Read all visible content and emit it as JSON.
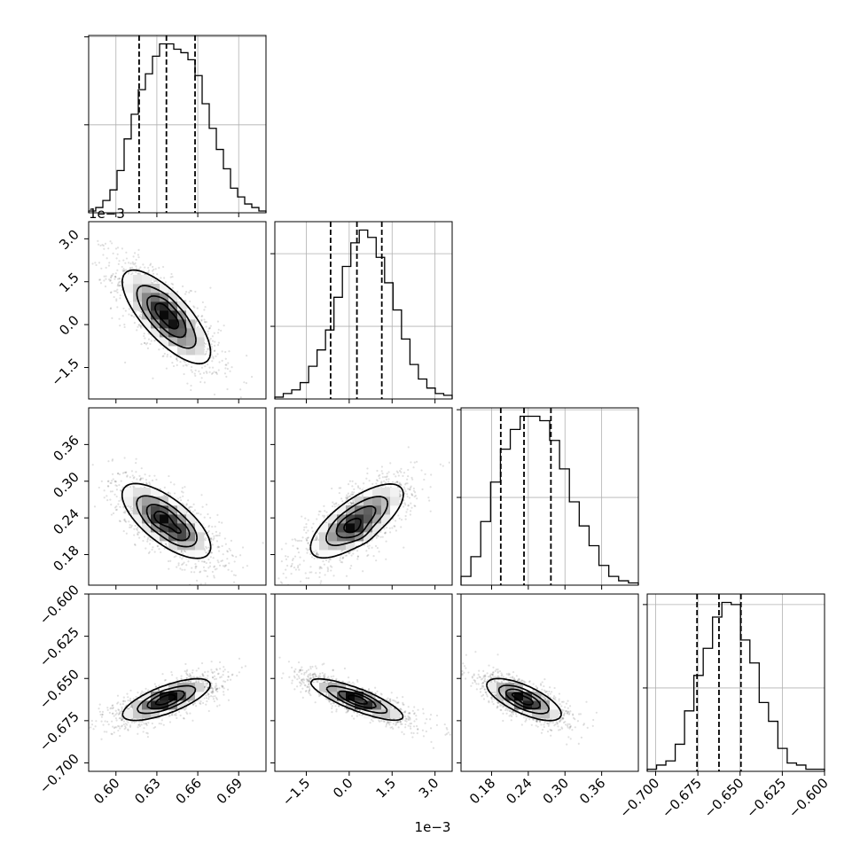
{
  "chart_data": {
    "type": "corner",
    "parameters": [
      {
        "range": [
          0.58,
          0.71
        ],
        "ticks": [
          0.6,
          0.63,
          0.66,
          0.69
        ],
        "tick_labels": [
          "0.60",
          "0.63",
          "0.66",
          "0.69"
        ],
        "offset_label": "",
        "quantiles": [
          0.617,
          0.637,
          0.658
        ],
        "hist": [
          1,
          3,
          7,
          13,
          24,
          42,
          56,
          70,
          79,
          89,
          96,
          96,
          93,
          91,
          87,
          78,
          62,
          48,
          36,
          25,
          14,
          9,
          5,
          3,
          1
        ],
        "hist_yticks": [
          50,
          100
        ]
      },
      {
        "range": [
          -2.6,
          3.6
        ],
        "ticks": [
          -1.5,
          0.0,
          1.5,
          3.0
        ],
        "tick_labels": [
          "−1.5",
          "0.0",
          "1.5",
          "3.0"
        ],
        "offset_label": "1e−3",
        "quantiles": [
          -0.65,
          0.27,
          1.14
        ],
        "hist": [
          1,
          3,
          5,
          9,
          18,
          27,
          38,
          56,
          73,
          86,
          93,
          89,
          78,
          64,
          49,
          33,
          19,
          11,
          6,
          3,
          2
        ],
        "hist_yticks": [
          40,
          80
        ]
      },
      {
        "range": [
          0.13,
          0.42
        ],
        "ticks": [
          0.18,
          0.24,
          0.3,
          0.36
        ],
        "tick_labels": [
          "0.18",
          "0.24",
          "0.30",
          "0.36"
        ],
        "offset_label": "",
        "quantiles": [
          0.195,
          0.233,
          0.277
        ],
        "hist": [
          4,
          13,
          29,
          47,
          62,
          71,
          77,
          77,
          75,
          66,
          53,
          38,
          27,
          18,
          9,
          4,
          2,
          1
        ],
        "hist_yticks": [
          40,
          80
        ]
      },
      {
        "range": [
          -0.705,
          -0.6
        ],
        "ticks": [
          -0.7,
          -0.675,
          -0.65,
          -0.625,
          -0.6
        ],
        "tick_labels": [
          "−0.700",
          "−0.675",
          "−0.650",
          "−0.625",
          "−0.600"
        ],
        "offset_label": "",
        "quantiles": [
          -0.6755,
          -0.6625,
          -0.6495
        ],
        "hist": [
          1,
          3,
          5,
          13,
          29,
          46,
          59,
          74,
          81,
          80,
          63,
          52,
          33,
          24,
          11,
          4,
          3,
          1,
          1
        ],
        "hist_yticks": [
          40,
          80
        ]
      }
    ],
    "pairs": [
      {
        "row": 1,
        "col": 0,
        "mean": [
          0.637,
          0.27
        ],
        "sigma": [
          0.017,
          0.86
        ],
        "rho": -0.75,
        "peaks": [
          {
            "x": 0.634,
            "y": 0.6,
            "w": 0.9
          },
          {
            "x": 0.643,
            "y": 0.1,
            "w": 0.8
          }
        ]
      },
      {
        "row": 2,
        "col": 0,
        "mean": [
          0.637,
          0.235
        ],
        "sigma": [
          0.017,
          0.032
        ],
        "rho": -0.7,
        "peaks": [
          {
            "x": 0.632,
            "y": 0.24,
            "w": 0.85
          },
          {
            "x": 0.648,
            "y": 0.214,
            "w": 0.9
          }
        ]
      },
      {
        "row": 2,
        "col": 1,
        "mean": [
          0.27,
          0.235
        ],
        "sigma": [
          0.86,
          0.032
        ],
        "rho": 0.72,
        "peaks": [
          {
            "x": 0.0,
            "y": 0.225,
            "w": 0.9
          },
          {
            "x": 0.35,
            "y": 0.215,
            "w": 0.7
          }
        ]
      },
      {
        "row": 3,
        "col": 0,
        "mean": [
          0.637,
          -0.6625
        ],
        "sigma": [
          0.017,
          0.0065
        ],
        "rho": 0.72,
        "peaks": [
          {
            "x": 0.638,
            "y": -0.661,
            "w": 0.9
          },
          {
            "x": 0.632,
            "y": -0.665,
            "w": 0.7
          }
        ]
      },
      {
        "row": 3,
        "col": 1,
        "mean": [
          0.27,
          -0.6625
        ],
        "sigma": [
          0.86,
          0.0065
        ],
        "rho": -0.83,
        "peaks": [
          {
            "x": 0.2,
            "y": -0.661,
            "w": 0.9
          },
          {
            "x": 0.5,
            "y": -0.664,
            "w": 0.7
          }
        ]
      },
      {
        "row": 3,
        "col": 2,
        "mean": [
          0.233,
          -0.6625
        ],
        "sigma": [
          0.032,
          0.0065
        ],
        "rho": -0.7,
        "peaks": [
          {
            "x": 0.217,
            "y": -0.659,
            "w": 0.9
          },
          {
            "x": 0.238,
            "y": -0.664,
            "w": 0.8
          }
        ]
      }
    ],
    "contour_levels": [
      0.118,
      0.393,
      0.675,
      0.865
    ],
    "bottom_offset_label": "1e−3",
    "left_offset_label": "1e−3"
  }
}
